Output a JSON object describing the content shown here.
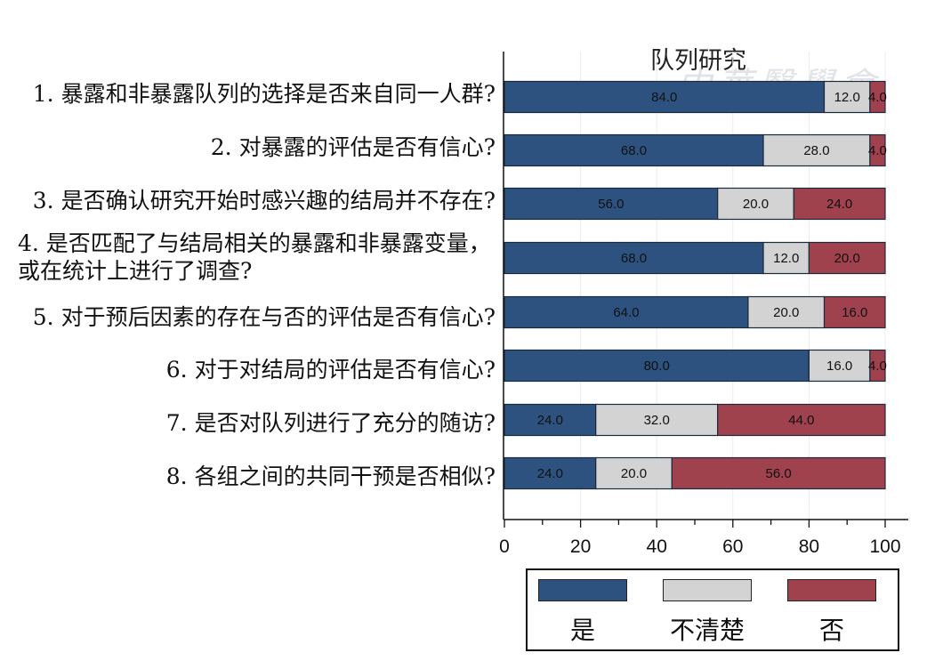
{
  "chart_data": {
    "type": "bar",
    "orientation": "horizontal",
    "stacked": true,
    "title": "队列研究",
    "categories": [
      "1. 暴露和非暴露队列的选择是否来自同一人群?",
      "2. 对暴露的评估是否有信心?",
      "3. 是否确认研究开始时感兴趣的结局并不存在?",
      "4. 是否匹配了与结局相关的暴露和非暴露变量，或在统计上进行了调查?",
      "5. 对于预后因素的存在与否的评估是否有信心?",
      "6. 对于对结局的评估是否有信心?",
      "7. 是否对队列进行了充分的随访?",
      "8. 各组之间的共同干预是否相似?"
    ],
    "series": [
      {
        "name": "是",
        "color": "#2d5280",
        "values": [
          84.0,
          68.0,
          56.0,
          68.0,
          64.0,
          80.0,
          24.0,
          24.0
        ]
      },
      {
        "name": "不清楚",
        "color": "#d3d3d3",
        "values": [
          12.0,
          28.0,
          20.0,
          12.0,
          20.0,
          16.0,
          32.0,
          20.0
        ]
      },
      {
        "name": "否",
        "color": "#a0414e",
        "values": [
          4.0,
          4.0,
          24.0,
          20.0,
          16.0,
          4.0,
          44.0,
          56.0
        ]
      }
    ],
    "value_labels": [
      [
        "84.0",
        "12.0",
        "4.0"
      ],
      [
        "68.0",
        "28.0",
        "4.0"
      ],
      [
        "56.0",
        "20.0",
        "24.0"
      ],
      [
        "68.0",
        "12.0",
        "20.0"
      ],
      [
        "64.0",
        "20.0",
        "16.0"
      ],
      [
        "80.0",
        "16.0",
        "4.0"
      ],
      [
        "24.0",
        "32.0",
        "44.0"
      ],
      [
        "24.0",
        "20.0",
        "56.0"
      ]
    ],
    "xlim": [
      0,
      100
    ],
    "xticks": [
      0,
      20,
      40,
      60,
      80,
      100
    ],
    "xtick_labels": [
      "0",
      "20",
      "40",
      "60",
      "80",
      "100"
    ],
    "grid": "vertical",
    "legend_position": "bottom"
  },
  "labels": {
    "q1": "1. 暴露和非暴露队列的选择是否来自同一人群?",
    "q2": "2. 对暴露的评估是否有信心?",
    "q3": "3. 是否确认研究开始时感兴趣的结局并不存在?",
    "q4": "4. 是否匹配了与结局相关的暴露和非暴露变量，或在统计上进行了调查?",
    "q5": "5. 对于预后因素的存在与否的评估是否有信心?",
    "q6": "6. 对于对结局的评估是否有信心?",
    "q7": "7. 是否对队列进行了充分的随访?",
    "q8": "8. 各组之间的共同干预是否相似?"
  },
  "legend": {
    "yes": "是",
    "unclear": "不清楚",
    "no": "否"
  },
  "watermark_text": "中華醫學會"
}
